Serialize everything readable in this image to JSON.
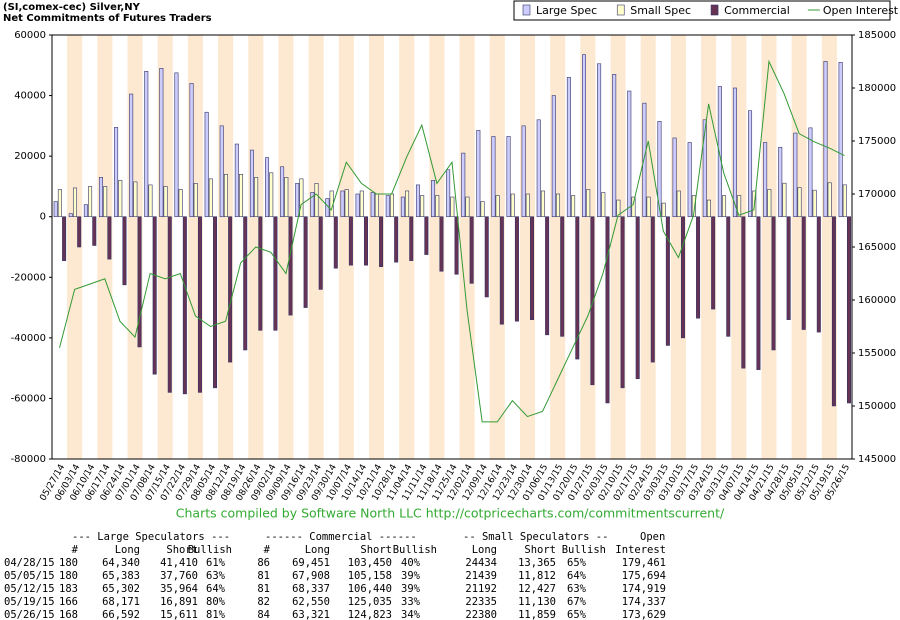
{
  "chart_data": {
    "type": "bar",
    "title": "(SI,comex-cec) Silver,NY",
    "subtitle": "Net Commitments of Futures Traders",
    "categories": [
      "05/27/14",
      "06/03/14",
      "06/10/14",
      "06/17/14",
      "06/24/14",
      "07/01/14",
      "07/08/14",
      "07/15/14",
      "07/22/14",
      "07/29/14",
      "08/05/14",
      "08/12/14",
      "08/19/14",
      "08/26/14",
      "09/02/14",
      "09/09/14",
      "09/16/14",
      "09/23/14",
      "09/30/14",
      "10/07/14",
      "10/14/14",
      "10/21/14",
      "10/28/14",
      "11/04/14",
      "11/11/14",
      "11/18/14",
      "11/25/14",
      "12/02/14",
      "12/09/14",
      "12/16/14",
      "12/23/14",
      "12/30/14",
      "01/06/15",
      "01/13/15",
      "01/20/15",
      "01/27/15",
      "02/03/15",
      "02/10/15",
      "02/17/15",
      "02/24/15",
      "03/03/15",
      "03/10/15",
      "03/17/15",
      "03/24/15",
      "03/31/15",
      "04/07/15",
      "04/14/15",
      "04/21/15",
      "04/28/15",
      "05/05/15",
      "05/12/15",
      "05/19/15",
      "05/26/15"
    ],
    "series": [
      {
        "name": "Large Spec",
        "color": "#ccccff",
        "values": [
          5000,
          1000,
          4000,
          13000,
          29500,
          40500,
          48000,
          49000,
          47500,
          44000,
          34500,
          30000,
          24000,
          22000,
          19500,
          16500,
          11000,
          8000,
          6000,
          8500,
          7500,
          8000,
          7000,
          6500,
          10500,
          12000,
          15500,
          21000,
          28500,
          26500,
          26500,
          30000,
          32000,
          40000,
          46000,
          53500,
          50500,
          47000,
          41500,
          37500,
          31500,
          26000,
          24500,
          32000,
          43000,
          42500,
          35000,
          24500,
          22930,
          27623,
          29338,
          51280,
          50981
        ]
      },
      {
        "name": "Small Spec",
        "color": "#ffffcc",
        "values": [
          9000,
          9500,
          10000,
          10000,
          12000,
          11500,
          10500,
          10000,
          9000,
          11000,
          12500,
          14000,
          14000,
          13000,
          14500,
          13000,
          12500,
          11000,
          8500,
          9000,
          8500,
          7500,
          7500,
          8500,
          7000,
          7000,
          6500,
          6500,
          5000,
          7000,
          7500,
          7500,
          8500,
          7500,
          7000,
          9000,
          8000,
          5500,
          6500,
          6500,
          4500,
          8500,
          7000,
          5500,
          7000,
          7000,
          8500,
          9000,
          11069,
          9627,
          8765,
          11205,
          10521
        ]
      },
      {
        "name": "Commercial",
        "color": "#663355",
        "values": [
          -14500,
          -10000,
          -9500,
          -14000,
          -22500,
          -43000,
          -52000,
          -58000,
          -58500,
          -58000,
          -56500,
          -48000,
          -44000,
          -37500,
          -37500,
          -32500,
          -30000,
          -24000,
          -17000,
          -16000,
          -16000,
          -16500,
          -15000,
          -14500,
          -12500,
          -18000,
          -19000,
          -22000,
          -26500,
          -35500,
          -34500,
          -34000,
          -39000,
          -39500,
          -47000,
          -55500,
          -61500,
          -56500,
          -53500,
          -48000,
          -42500,
          -40000,
          -33500,
          -30500,
          -39500,
          -50000,
          -50500,
          -44000,
          -33999,
          -37250,
          -38103,
          -62485,
          -61502
        ]
      },
      {
        "name": "Open Interest",
        "color": "#339933",
        "type": "line",
        "axis": "y2",
        "values": [
          155500,
          161000,
          161500,
          162000,
          158000,
          156500,
          162500,
          162000,
          162500,
          158500,
          157500,
          158000,
          163500,
          165000,
          164500,
          162500,
          169000,
          170000,
          168500,
          173000,
          171000,
          170000,
          170000,
          173500,
          176500,
          171000,
          173000,
          159000,
          148500,
          148500,
          150500,
          149000,
          149500,
          152500,
          155500,
          158500,
          162500,
          168000,
          169000,
          175000,
          166500,
          164000,
          168000,
          178500,
          172000,
          168000,
          168500,
          182500,
          179461,
          175694,
          174919,
          174337,
          173629
        ]
      }
    ],
    "ylim": [
      -80000,
      60000
    ],
    "yticks": [
      -80000,
      -60000,
      -40000,
      -20000,
      0,
      20000,
      40000,
      60000
    ],
    "y2lim": [
      145000,
      185000
    ],
    "y2ticks": [
      145000,
      150000,
      155000,
      160000,
      165000,
      170000,
      175000,
      180000,
      185000
    ],
    "legend": "top-right"
  },
  "credit": "Charts compiled by Software North LLC  http://cotpricecharts.com/commitmentscurrent/",
  "table": {
    "group_headers": [
      "--- Large Speculators ---",
      "------ Commercial ------",
      "-- Small Speculators --",
      "Open"
    ],
    "headers": [
      "#",
      "Long",
      "Short",
      "Bullish",
      "#",
      "Long",
      "Short",
      "Bullish",
      "Long",
      "Short",
      "Bullish",
      "Interest"
    ],
    "rows": [
      [
        "04/28/15",
        "180",
        "64,340",
        "41,410",
        "61%",
        "86",
        "69,451",
        "103,450",
        "40%",
        "24434",
        "13,365",
        "65%",
        "179,461"
      ],
      [
        "05/05/15",
        "180",
        "65,383",
        "37,760",
        "63%",
        "81",
        "67,908",
        "105,158",
        "39%",
        "21439",
        "11,812",
        "64%",
        "175,694"
      ],
      [
        "05/12/15",
        "183",
        "65,302",
        "35,964",
        "64%",
        "81",
        "68,337",
        "106,440",
        "39%",
        "21192",
        "12,427",
        "63%",
        "174,919"
      ],
      [
        "05/19/15",
        "166",
        "68,171",
        "16,891",
        "80%",
        "82",
        "62,550",
        "125,035",
        "33%",
        "22335",
        "11,130",
        "67%",
        "174,337"
      ],
      [
        "05/26/15",
        "168",
        "66,592",
        "15,611",
        "81%",
        "84",
        "63,321",
        "124,823",
        "34%",
        "22380",
        "11,859",
        "65%",
        "173,629"
      ]
    ]
  }
}
